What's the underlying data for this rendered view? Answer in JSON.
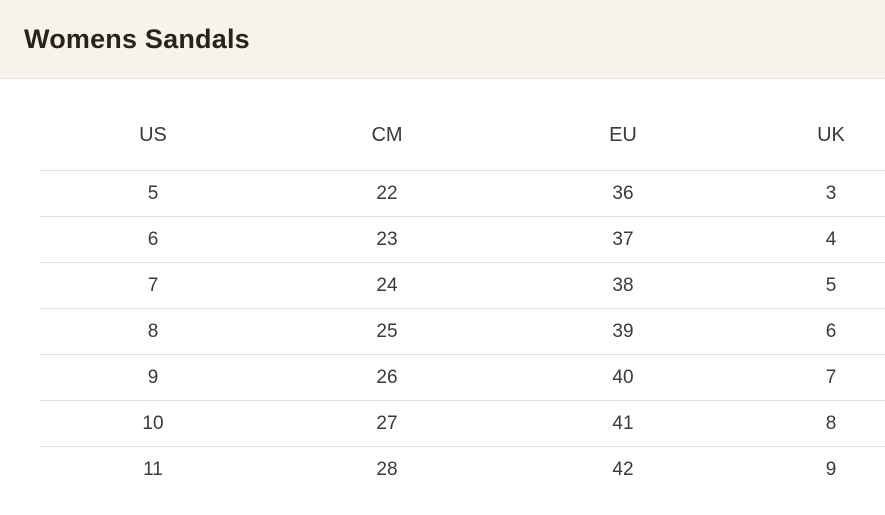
{
  "header": {
    "title": "Womens Sandals"
  },
  "size_table": {
    "columns": [
      "US",
      "CM",
      "EU",
      "UK"
    ],
    "rows": [
      [
        "5",
        "22",
        "36",
        "3"
      ],
      [
        "6",
        "23",
        "37",
        "4"
      ],
      [
        "7",
        "24",
        "38",
        "5"
      ],
      [
        "8",
        "25",
        "39",
        "6"
      ],
      [
        "9",
        "26",
        "40",
        "7"
      ],
      [
        "10",
        "27",
        "41",
        "8"
      ],
      [
        "11",
        "28",
        "42",
        "9"
      ]
    ]
  },
  "colors": {
    "header_background": "#f5f3ec",
    "header_border": "#e6e4dc",
    "title_text": "#28231d",
    "table_text": "#3a3a3a",
    "row_divider": "#e1e1e1",
    "page_background": "#ffffff"
  }
}
